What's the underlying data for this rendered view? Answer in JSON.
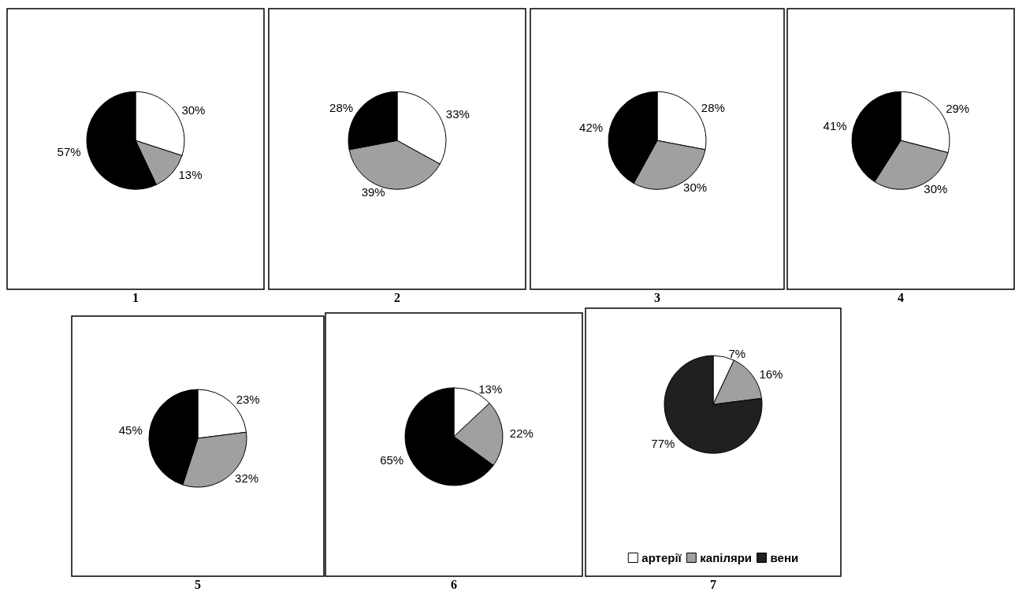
{
  "chart_data": [
    {
      "type": "pie",
      "title": "1",
      "categories": [
        null,
        null,
        null
      ],
      "values": [
        30,
        13,
        57
      ],
      "value_labels": [
        "30%",
        "13%",
        "57%"
      ],
      "colors": [
        "#ffffff",
        "#a0a0a0",
        "#000000"
      ],
      "legend": false
    },
    {
      "type": "pie",
      "title": "2",
      "categories": [
        null,
        null,
        null
      ],
      "values": [
        33,
        39,
        28
      ],
      "value_labels": [
        "33%",
        "39%",
        "28%"
      ],
      "colors": [
        "#ffffff",
        "#a0a0a0",
        "#000000"
      ],
      "legend": false
    },
    {
      "type": "pie",
      "title": "3",
      "categories": [
        null,
        null,
        null
      ],
      "values": [
        28,
        30,
        42
      ],
      "value_labels": [
        "28%",
        "30%",
        "42%"
      ],
      "colors": [
        "#ffffff",
        "#a0a0a0",
        "#000000"
      ],
      "legend": false
    },
    {
      "type": "pie",
      "title": "4",
      "categories": [
        null,
        null,
        null
      ],
      "values": [
        29,
        30,
        41
      ],
      "value_labels": [
        "29%",
        "30%",
        "41%"
      ],
      "colors": [
        "#ffffff",
        "#a0a0a0",
        "#000000"
      ],
      "legend": false
    },
    {
      "type": "pie",
      "title": "5",
      "categories": [
        null,
        null,
        null
      ],
      "values": [
        23,
        32,
        45
      ],
      "value_labels": [
        "23%",
        "32%",
        "45%"
      ],
      "colors": [
        "#ffffff",
        "#a0a0a0",
        "#000000"
      ],
      "legend": false
    },
    {
      "type": "pie",
      "title": "6",
      "categories": [
        null,
        null,
        null
      ],
      "values": [
        13,
        22,
        65
      ],
      "value_labels": [
        "13%",
        "22%",
        "65%"
      ],
      "colors": [
        "#ffffff",
        "#a0a0a0",
        "#000000"
      ],
      "legend": false
    },
    {
      "type": "pie",
      "title": "7",
      "categories": [
        "артерії",
        "капіляри",
        "вени"
      ],
      "values": [
        7,
        16,
        77
      ],
      "value_labels": [
        "7%",
        "16%",
        "77%"
      ],
      "colors": [
        "#ffffff",
        "#a0a0a0",
        "#202020"
      ],
      "legend": "bottom"
    }
  ]
}
